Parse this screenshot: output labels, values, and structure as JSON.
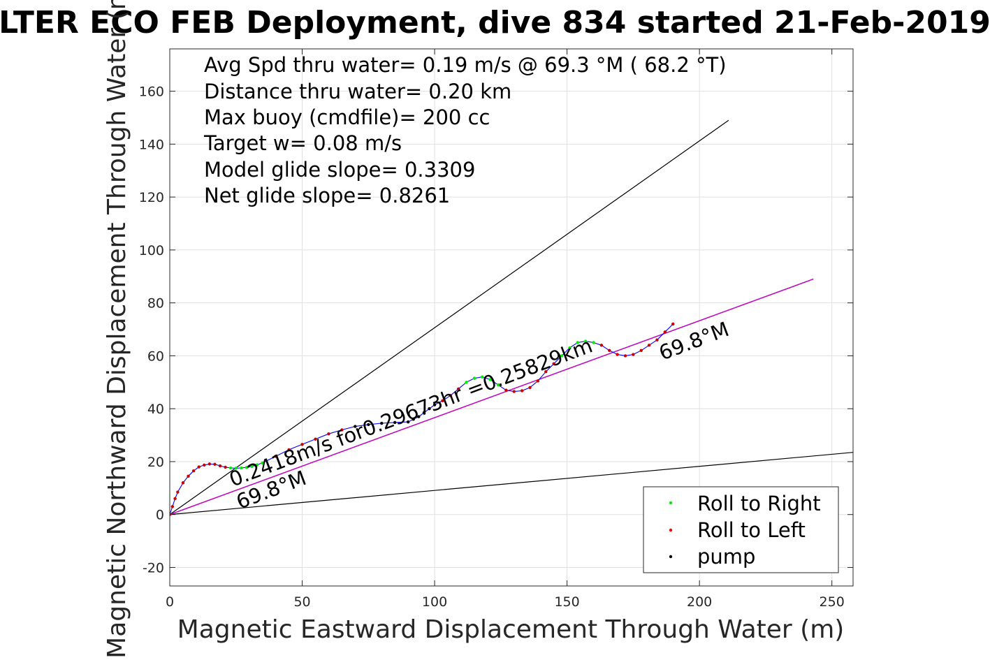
{
  "chart_data": {
    "type": "line",
    "title": "LTER ECO FEB Deployment, dive 834 started 21-Feb-2019",
    "xlabel": "Magnetic Eastward Displacement Through Water (m)",
    "ylabel": "Magnetic Northward Displacement Through Water (m)",
    "xlim": [
      0,
      258
    ],
    "ylim": [
      -27,
      176
    ],
    "xticks": [
      0,
      50,
      100,
      150,
      200,
      250
    ],
    "yticks": [
      -20,
      0,
      20,
      40,
      60,
      80,
      100,
      120,
      140,
      160
    ],
    "grid": true,
    "info_lines": [
      "Avg Spd thru water=  0.19 m/s @  69.3 °M ( 68.2 °T)",
      "Distance thru water=  0.20 km",
      "Max buoy (cmdfile)= 200 cc",
      "Target w= 0.08 m/s",
      "Model glide slope= 0.3309",
      "Net glide slope= 0.8261"
    ],
    "annotations": {
      "speed_label": "0.2418m/s for0.29673hr =0.25829km",
      "heading_label_1": "69.8°M",
      "heading_label_2": "69.8°M"
    },
    "reference_lines": [
      {
        "x": [
          0,
          211
        ],
        "y": [
          0,
          149
        ]
      },
      {
        "x": [
          0,
          258
        ],
        "y": [
          0,
          23.5
        ]
      },
      {
        "x": [
          0,
          243
        ],
        "y": [
          0,
          89
        ]
      }
    ],
    "track": {
      "x": [
        0,
        1,
        2,
        3,
        5,
        7,
        9,
        11,
        13,
        15,
        17,
        19,
        21,
        23,
        25,
        27,
        29,
        31,
        33,
        35,
        40,
        45,
        50,
        55,
        60,
        65,
        70,
        75,
        80,
        85,
        90,
        92,
        94,
        96,
        98,
        100,
        103,
        106,
        109,
        112,
        115,
        118,
        121,
        124,
        127,
        130,
        133,
        136,
        139,
        142,
        145,
        148,
        151,
        154,
        157,
        160,
        163,
        166,
        169,
        172,
        175,
        178,
        181,
        184,
        187,
        190
      ],
      "y": [
        0,
        3,
        6,
        8.5,
        12,
        14.5,
        16.5,
        18,
        18.7,
        19.1,
        19,
        18.4,
        17.9,
        17.6,
        17.5,
        17.6,
        17.8,
        18.2,
        18.8,
        19.5,
        22,
        24.5,
        26.5,
        28.5,
        30.5,
        32,
        33.3,
        34,
        34.5,
        34.8,
        35,
        36,
        37,
        38.5,
        40,
        41.5,
        43,
        45,
        47.5,
        50,
        51.5,
        52,
        51,
        49,
        47,
        46.5,
        46.8,
        48,
        50.5,
        54,
        57,
        60,
        63,
        65,
        65.5,
        65,
        64,
        62,
        60.5,
        60,
        60.5,
        62,
        64,
        66,
        69,
        72
      ]
    },
    "legend": {
      "placement": "bottom-right",
      "entries": [
        {
          "label": "Roll to Right",
          "color": "#00ee00"
        },
        {
          "label": "Roll to Left",
          "color": "#ff0000"
        },
        {
          "label": "pump",
          "color": "#000000"
        }
      ]
    },
    "colors": {
      "track": "#0000ff",
      "roll_right": "#00ee00",
      "roll_left": "#cc0000",
      "pump": "#000000",
      "heading_line": "#cc00cc",
      "reference": "#000000",
      "grid": "#e0e0e0"
    }
  }
}
